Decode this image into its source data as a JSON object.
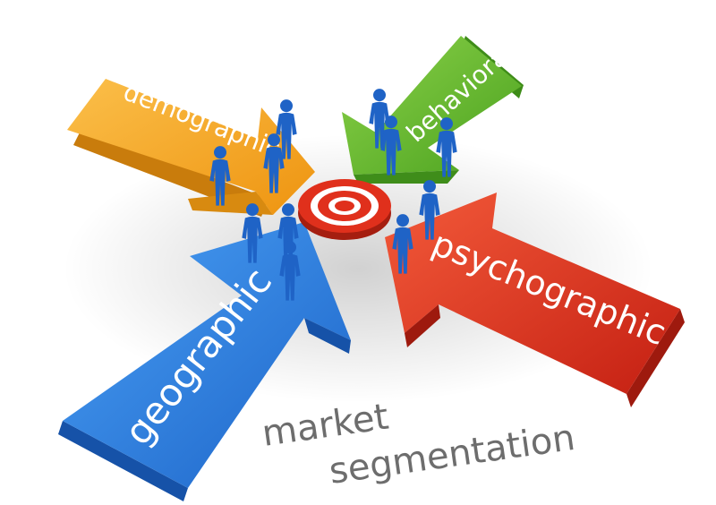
{
  "segments": {
    "demographic": {
      "label": "demographic",
      "color": "#f5a623"
    },
    "behavioral": {
      "label": "behavioral",
      "color": "#5fb82e"
    },
    "geographic": {
      "label": "geographic",
      "color": "#2a7fe0"
    },
    "psychographic": {
      "label": "psychographic",
      "color": "#e0301c"
    }
  },
  "title": {
    "line1": "market",
    "line2": "segmentation"
  },
  "target_color": "#e0301c",
  "figure_color": "#1f63c6",
  "icons": [
    "target-icon",
    "person-icon"
  ]
}
